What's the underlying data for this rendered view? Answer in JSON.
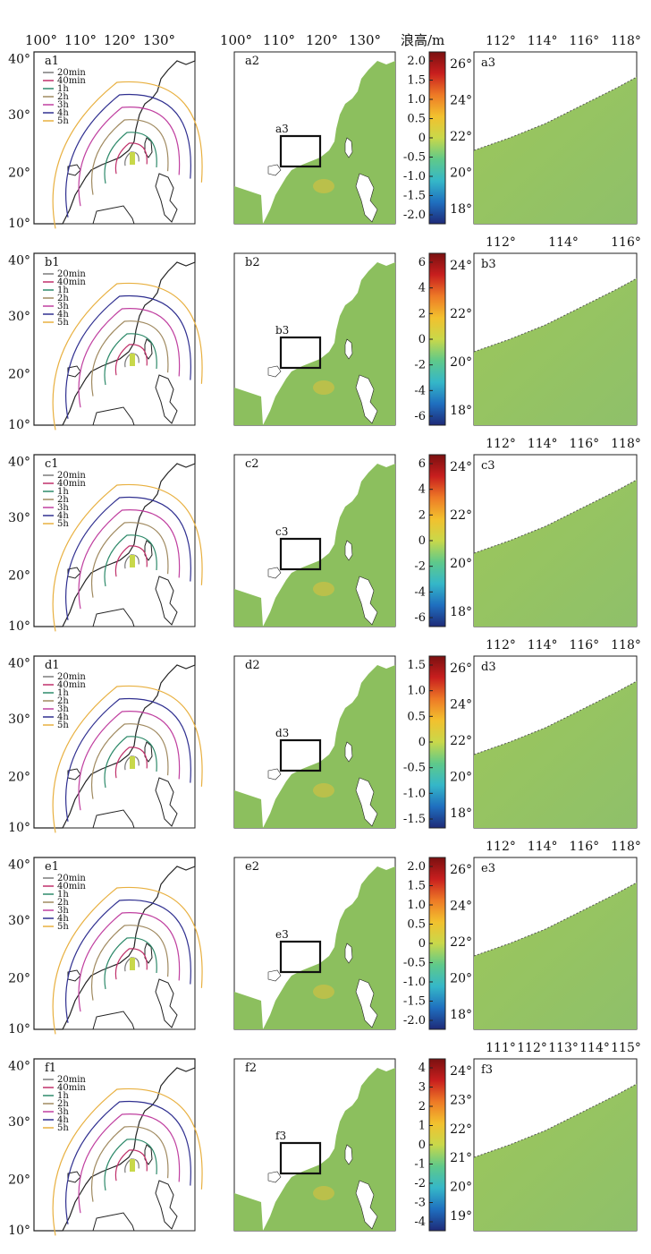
{
  "unit_label": "浪高/m",
  "top_lon_labels_panel1": [
    "100°",
    "110°",
    "120°",
    "130°"
  ],
  "top_lon_labels_panel2": [
    "100°",
    "110°",
    "120°",
    "130°"
  ],
  "lat_labels": [
    "40°",
    "30°",
    "20°",
    "10°"
  ],
  "legend_items": [
    "20min",
    "40min",
    "1h",
    "2h",
    "3h",
    "4h",
    "5h"
  ],
  "legend_colors": [
    "#7a7a7a",
    "#c0306a",
    "#2e8a6a",
    "#a08a60",
    "#c040a0",
    "#303090",
    "#e8b040"
  ],
  "colorbar_colors": [
    "#1e2a78",
    "#1f6fbf",
    "#35b7c8",
    "#5fc98a",
    "#c9d84a",
    "#f2c12e",
    "#ee7a26",
    "#c81e1e",
    "#7a1010"
  ],
  "rows": [
    {
      "p1": "a1",
      "p2": "a2",
      "p3": "a3",
      "box": "a3",
      "colorbar_ticks": [
        "2.0",
        "1.5",
        "1.0",
        "0.5",
        "0",
        "-0.5",
        "-1.0",
        "-1.5",
        "-2.0"
      ],
      "zoom_lon_labels": [
        "112°",
        "114°",
        "116°",
        "118°"
      ],
      "zoom_lat_labels": [
        "26°",
        "24°",
        "22°",
        "20°",
        "18°"
      ]
    },
    {
      "p1": "b1",
      "p2": "b2",
      "p3": "b3",
      "box": "b3",
      "colorbar_ticks": [
        "6",
        "4",
        "2",
        "0",
        "-2",
        "-4",
        "-6"
      ],
      "zoom_lon_labels": [
        "112°",
        "114°",
        "116°"
      ],
      "zoom_lat_labels": [
        "24°",
        "22°",
        "20°",
        "18°"
      ]
    },
    {
      "p1": "c1",
      "p2": "c2",
      "p3": "c3",
      "box": "c3",
      "colorbar_ticks": [
        "6",
        "4",
        "2",
        "0",
        "-2",
        "-4",
        "-6"
      ],
      "zoom_lon_labels": [
        "112°",
        "114°",
        "116°",
        "118°"
      ],
      "zoom_lat_labels": [
        "24°",
        "22°",
        "20°",
        "18°"
      ]
    },
    {
      "p1": "d1",
      "p2": "d2",
      "p3": "d3",
      "box": "d3",
      "colorbar_ticks": [
        "1.5",
        "1.0",
        "0.5",
        "0",
        "-0.5",
        "-1.0",
        "-1.5"
      ],
      "zoom_lon_labels": [
        "112°",
        "114°",
        "116°",
        "118°"
      ],
      "zoom_lat_labels": [
        "26°",
        "24°",
        "22°",
        "20°",
        "18°"
      ]
    },
    {
      "p1": "e1",
      "p2": "e2",
      "p3": "e3",
      "box": "e3",
      "colorbar_ticks": [
        "2.0",
        "1.5",
        "1.0",
        "0.5",
        "0",
        "-0.5",
        "-1.0",
        "-1.5",
        "-2.0"
      ],
      "zoom_lon_labels": [
        "112°",
        "114°",
        "116°",
        "118°"
      ],
      "zoom_lat_labels": [
        "26°",
        "24°",
        "22°",
        "20°",
        "18°"
      ]
    },
    {
      "p1": "f1",
      "p2": "f2",
      "p3": "f3",
      "box": "f3",
      "colorbar_ticks": [
        "4",
        "3",
        "2",
        "1",
        "0",
        "-1",
        "-2",
        "-3",
        "-4"
      ],
      "zoom_lon_labels": [
        "111°",
        "112°",
        "113°",
        "114°",
        "115°"
      ],
      "zoom_lat_labels": [
        "24°",
        "23°",
        "22°",
        "21°",
        "20°",
        "19°"
      ]
    }
  ]
}
